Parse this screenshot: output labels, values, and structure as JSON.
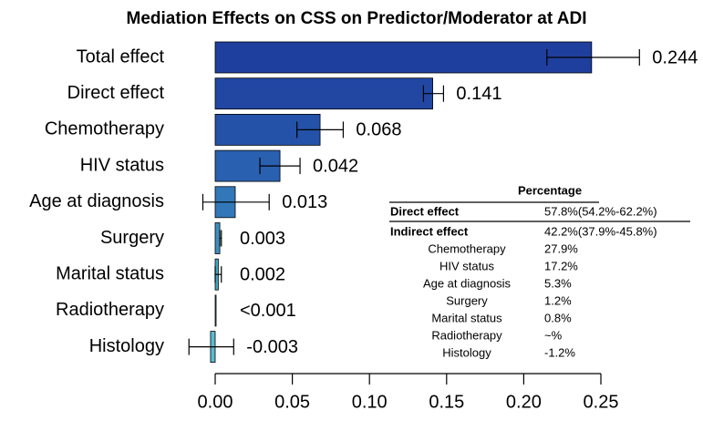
{
  "chart_data": {
    "type": "bar",
    "orientation": "horizontal",
    "title": "Mediation Effects on CSS on Predictor/Moderator at ADI",
    "categories": [
      "Total effect",
      "Direct effect",
      "Chemotherapy",
      "HIV status",
      "Age at diagnosis",
      "Surgery",
      "Marital status",
      "Radiotherapy",
      "Histology"
    ],
    "values": [
      0.244,
      0.141,
      0.068,
      0.042,
      0.013,
      0.003,
      0.002,
      0.0005,
      -0.003
    ],
    "value_labels": [
      "0.244",
      "0.141",
      "0.068",
      "0.042",
      "0.013",
      "0.003",
      "0.002",
      "<0.001",
      "-0.003"
    ],
    "ci_low": [
      0.215,
      0.135,
      0.053,
      0.029,
      -0.008,
      0.003,
      0.0,
      null,
      -0.017
    ],
    "ci_high": [
      0.275,
      0.148,
      0.083,
      0.055,
      0.035,
      0.004,
      0.004,
      null,
      0.012
    ],
    "colors": [
      "#1f3f9e",
      "#2147a3",
      "#2452a9",
      "#2a60b0",
      "#3278b8",
      "#3b90c0",
      "#45a4c6",
      "#50b0ca",
      "#5bbcd0"
    ],
    "xlim": [
      0,
      0.25
    ],
    "xticks": [
      {
        "value": 0,
        "label": "0.00"
      },
      {
        "value": 0.05,
        "label": "0.05"
      },
      {
        "value": 0.1,
        "label": "0.10"
      },
      {
        "value": 0.15,
        "label": "0.15"
      },
      {
        "value": 0.2,
        "label": "0.20"
      },
      {
        "value": 0.25,
        "label": "0.25"
      }
    ]
  },
  "table": {
    "header": "Percentage",
    "rows": [
      [
        "Direct effect",
        "57.8%(54.2%-62.2%)"
      ],
      [
        "Indirect effect",
        "42.2%(37.9%-45.8%)"
      ],
      [
        "Chemotherapy",
        "27.9%"
      ],
      [
        "HIV status",
        "17.2%"
      ],
      [
        "Age at diagnosis",
        "5.3%"
      ],
      [
        "Surgery",
        "1.2%"
      ],
      [
        "Marital status",
        "0.8%"
      ],
      [
        "Radiotherapy",
        "~%"
      ],
      [
        "Histology",
        "-1.2%"
      ]
    ]
  }
}
